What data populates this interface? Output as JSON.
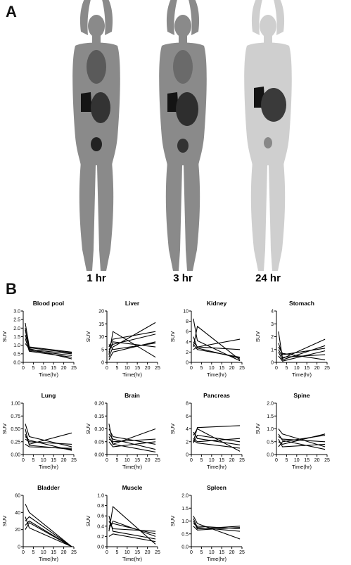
{
  "panel_a": {
    "label": "A",
    "scans": [
      {
        "time_label": "1 hr"
      },
      {
        "time_label": "3 hr"
      },
      {
        "time_label": "24 hr"
      }
    ]
  },
  "panel_b": {
    "label": "B"
  },
  "colors": {
    "line": "#000000",
    "axis": "#000000",
    "pet_body": "#7a7a7a",
    "pet_faded": "#c8c8c8",
    "organ": "#141414"
  },
  "chart_data": [
    {
      "type": "line",
      "title": "Blood pool",
      "xlabel": "Time(hr)",
      "ylabel": "SUV",
      "xlim": [
        0,
        25
      ],
      "ylim": [
        0,
        3
      ],
      "xticks": [
        0,
        5,
        10,
        15,
        20,
        25
      ],
      "yticks": [
        0.0,
        0.5,
        1.0,
        1.5,
        2.0,
        2.5,
        3.0
      ],
      "ytick_labels": [
        "0.0",
        "0.5",
        "1.0",
        "1.5",
        "2.0",
        "2.5",
        "3.0"
      ],
      "series": [
        {
          "x": [
            1,
            3,
            24
          ],
          "y": [
            2.3,
            0.9,
            0.6
          ]
        },
        {
          "x": [
            1,
            3,
            24
          ],
          "y": [
            1.9,
            0.75,
            0.5
          ]
        },
        {
          "x": [
            1,
            3,
            24
          ],
          "y": [
            1.4,
            0.65,
            0.3
          ]
        },
        {
          "x": [
            1,
            3,
            24
          ],
          "y": [
            1.1,
            0.8,
            0.2
          ]
        },
        {
          "x": [
            1,
            3,
            24
          ],
          "y": [
            2.0,
            0.7,
            0.4
          ]
        },
        {
          "x": [
            1,
            3,
            24
          ],
          "y": [
            1.6,
            0.85,
            0.55
          ]
        }
      ]
    },
    {
      "type": "line",
      "title": "Liver",
      "xlabel": "Time(hr)",
      "ylabel": "SUV",
      "xlim": [
        0,
        25
      ],
      "ylim": [
        0,
        20
      ],
      "xticks": [
        0,
        5,
        10,
        15,
        20,
        25
      ],
      "yticks": [
        0,
        5,
        10,
        15,
        20
      ],
      "ytick_labels": [
        "0",
        "5",
        "10",
        "15",
        "20"
      ],
      "series": [
        {
          "x": [
            1,
            3,
            24
          ],
          "y": [
            2,
            6,
            15.5
          ]
        },
        {
          "x": [
            1,
            3,
            24
          ],
          "y": [
            3,
            12,
            2
          ]
        },
        {
          "x": [
            1,
            3,
            24
          ],
          "y": [
            5,
            7,
            11
          ]
        },
        {
          "x": [
            1,
            3,
            24
          ],
          "y": [
            4,
            8,
            6
          ]
        },
        {
          "x": [
            1,
            3,
            24
          ],
          "y": [
            6,
            9,
            12
          ]
        },
        {
          "x": [
            1,
            3,
            24
          ],
          "y": [
            1,
            4,
            8
          ]
        },
        {
          "x": [
            1,
            3,
            24
          ],
          "y": [
            7,
            5,
            7.5
          ]
        }
      ]
    },
    {
      "type": "line",
      "title": "Kidney",
      "xlabel": "Time(hr)",
      "ylabel": "SUV",
      "xlim": [
        0,
        25
      ],
      "ylim": [
        0,
        10
      ],
      "xticks": [
        0,
        5,
        10,
        15,
        20,
        25
      ],
      "yticks": [
        0,
        2,
        4,
        6,
        8,
        10
      ],
      "ytick_labels": [
        "0",
        "2",
        "4",
        "6",
        "8",
        "10"
      ],
      "series": [
        {
          "x": [
            1,
            3,
            24
          ],
          "y": [
            3,
            7,
            0.5
          ]
        },
        {
          "x": [
            1,
            3,
            24
          ],
          "y": [
            2.5,
            3,
            4.5
          ]
        },
        {
          "x": [
            1,
            3,
            24
          ],
          "y": [
            4,
            3,
            2.5
          ]
        },
        {
          "x": [
            1,
            3,
            24
          ],
          "y": [
            8.5,
            4.2,
            0.3
          ]
        },
        {
          "x": [
            1,
            3,
            24
          ],
          "y": [
            3.5,
            2.5,
            1
          ]
        },
        {
          "x": [
            1,
            3,
            24
          ],
          "y": [
            5,
            2.8,
            0.8
          ]
        }
      ]
    },
    {
      "type": "line",
      "title": "Stomach",
      "xlabel": "Time(hr)",
      "ylabel": "SUV",
      "xlim": [
        0,
        25
      ],
      "ylim": [
        0,
        4
      ],
      "xticks": [
        0,
        5,
        10,
        15,
        20,
        25
      ],
      "yticks": [
        0,
        1,
        2,
        3,
        4
      ],
      "ytick_labels": [
        "0",
        "1",
        "2",
        "3",
        "4"
      ],
      "series": [
        {
          "x": [
            1,
            3,
            24
          ],
          "y": [
            2.4,
            0.3,
            1.8
          ]
        },
        {
          "x": [
            1,
            3,
            24
          ],
          "y": [
            1.5,
            0.6,
            1.1
          ]
        },
        {
          "x": [
            1,
            3,
            24
          ],
          "y": [
            1.0,
            0.4,
            0.6
          ]
        },
        {
          "x": [
            1,
            3,
            24
          ],
          "y": [
            0.8,
            0.2,
            1.3
          ]
        },
        {
          "x": [
            1,
            3,
            24
          ],
          "y": [
            1.2,
            0.7,
            0.2
          ]
        },
        {
          "x": [
            1,
            3,
            24
          ],
          "y": [
            0.5,
            0.1,
            0.9
          ]
        }
      ]
    },
    {
      "type": "line",
      "title": "Lung",
      "xlabel": "Time(hr)",
      "ylabel": "SUV",
      "xlim": [
        0,
        25
      ],
      "ylim": [
        0,
        1
      ],
      "xticks": [
        0,
        5,
        10,
        15,
        20,
        25
      ],
      "yticks": [
        0,
        0.25,
        0.5,
        0.75,
        1.0
      ],
      "ytick_labels": [
        "0.00",
        "0.25",
        "0.50",
        "0.75",
        "1.00"
      ],
      "series": [
        {
          "x": [
            1,
            3,
            24
          ],
          "y": [
            0.6,
            0.35,
            0.15
          ]
        },
        {
          "x": [
            1,
            3,
            24
          ],
          "y": [
            0.4,
            0.2,
            0.42
          ]
        },
        {
          "x": [
            1,
            3,
            24
          ],
          "y": [
            0.3,
            0.25,
            0.2
          ]
        },
        {
          "x": [
            1,
            3,
            24
          ],
          "y": [
            0.5,
            0.18,
            0.1
          ]
        },
        {
          "x": [
            1,
            3,
            24
          ],
          "y": [
            0.2,
            0.15,
            0.12
          ]
        },
        {
          "x": [
            1,
            3,
            24
          ],
          "y": [
            0.35,
            0.28,
            0.08
          ]
        }
      ]
    },
    {
      "type": "line",
      "title": "Brain",
      "xlabel": "Time(hr)",
      "ylabel": "SUV",
      "xlim": [
        0,
        25
      ],
      "ylim": [
        0,
        0.2
      ],
      "xticks": [
        0,
        5,
        10,
        15,
        20,
        25
      ],
      "yticks": [
        0,
        0.05,
        0.1,
        0.15,
        0.2
      ],
      "ytick_labels": [
        "0.00",
        "0.05",
        "0.10",
        "0.15",
        "0.20"
      ],
      "series": [
        {
          "x": [
            1,
            3,
            24
          ],
          "y": [
            0.12,
            0.04,
            0.1
          ]
        },
        {
          "x": [
            1,
            3,
            24
          ],
          "y": [
            0.08,
            0.06,
            0.02
          ]
        },
        {
          "x": [
            1,
            3,
            24
          ],
          "y": [
            0.06,
            0.05,
            0.06
          ]
        },
        {
          "x": [
            1,
            3,
            24
          ],
          "y": [
            0.1,
            0.07,
            0.04
          ]
        },
        {
          "x": [
            1,
            3,
            24
          ],
          "y": [
            0.05,
            0.03,
            0.05
          ]
        },
        {
          "x": [
            1,
            3,
            24
          ],
          "y": [
            0.07,
            0.04,
            0.01
          ]
        }
      ]
    },
    {
      "type": "line",
      "title": "Pancreas",
      "xlabel": "Time(hr)",
      "ylabel": "SUV",
      "xlim": [
        0,
        25
      ],
      "ylim": [
        0,
        8
      ],
      "xticks": [
        0,
        5,
        10,
        15,
        20,
        25
      ],
      "yticks": [
        0,
        2,
        4,
        6,
        8
      ],
      "ytick_labels": [
        "0",
        "2",
        "4",
        "6",
        "8"
      ],
      "series": [
        {
          "x": [
            1,
            3,
            24
          ],
          "y": [
            2,
            4.2,
            4.5
          ]
        },
        {
          "x": [
            1,
            3,
            24
          ],
          "y": [
            3,
            4,
            0.5
          ]
        },
        {
          "x": [
            1,
            3,
            24
          ],
          "y": [
            2.5,
            2,
            2.5
          ]
        },
        {
          "x": [
            1,
            3,
            24
          ],
          "y": [
            3.5,
            2.5,
            1.5
          ]
        },
        {
          "x": [
            1,
            3,
            24
          ],
          "y": [
            2.2,
            1.8,
            1
          ]
        },
        {
          "x": [
            1,
            3,
            24
          ],
          "y": [
            1.8,
            3,
            2
          ]
        }
      ]
    },
    {
      "type": "line",
      "title": "Spine",
      "xlabel": "Time(hr)",
      "ylabel": "SUV",
      "xlim": [
        0,
        25
      ],
      "ylim": [
        0,
        2
      ],
      "xticks": [
        0,
        5,
        10,
        15,
        20,
        25
      ],
      "yticks": [
        0,
        0.5,
        1.0,
        1.5,
        2.0
      ],
      "ytick_labels": [
        "0.0",
        "0.5",
        "1.0",
        "1.5",
        "2.0"
      ],
      "series": [
        {
          "x": [
            1,
            3,
            24
          ],
          "y": [
            1.0,
            0.8,
            0.3
          ]
        },
        {
          "x": [
            1,
            3,
            24
          ],
          "y": [
            0.5,
            0.4,
            0.8
          ]
        },
        {
          "x": [
            1,
            3,
            24
          ],
          "y": [
            0.7,
            0.6,
            0.5
          ]
        },
        {
          "x": [
            1,
            3,
            24
          ],
          "y": [
            0.3,
            0.5,
            0.75
          ]
        },
        {
          "x": [
            1,
            3,
            24
          ],
          "y": [
            0.6,
            0.3,
            0.4
          ]
        },
        {
          "x": [
            1,
            3,
            24
          ],
          "y": [
            0.8,
            0.55,
            0.2
          ]
        }
      ]
    },
    {
      "type": "line",
      "title": "Bladder",
      "xlabel": "Time(hr)",
      "ylabel": "SUV",
      "xlim": [
        0,
        25
      ],
      "ylim": [
        0,
        60
      ],
      "xticks": [
        0,
        5,
        10,
        15,
        20,
        25
      ],
      "yticks": [
        0,
        20,
        40,
        60
      ],
      "ytick_labels": [
        "0",
        "20",
        "40",
        "60"
      ],
      "series": [
        {
          "x": [
            1,
            3,
            24
          ],
          "y": [
            50,
            40,
            0
          ]
        },
        {
          "x": [
            1,
            3,
            24
          ],
          "y": [
            30,
            35,
            0
          ]
        },
        {
          "x": [
            1,
            3,
            24
          ],
          "y": [
            20,
            28,
            0
          ]
        },
        {
          "x": [
            1,
            3,
            24
          ],
          "y": [
            35,
            22,
            0
          ]
        },
        {
          "x": [
            1,
            3,
            24
          ],
          "y": [
            25,
            30,
            0
          ]
        }
      ]
    },
    {
      "type": "line",
      "title": "Muscle",
      "xlabel": "Time(hr)",
      "ylabel": "SUV",
      "xlim": [
        0,
        25
      ],
      "ylim": [
        0,
        1
      ],
      "xticks": [
        0,
        5,
        10,
        15,
        20,
        25
      ],
      "yticks": [
        0,
        0.2,
        0.4,
        0.6,
        0.8,
        1.0
      ],
      "ytick_labels": [
        "0.0",
        "0.2",
        "0.4",
        "0.6",
        "0.8",
        "1.0"
      ],
      "series": [
        {
          "x": [
            1,
            3,
            24
          ],
          "y": [
            0.3,
            0.78,
            0.05
          ]
        },
        {
          "x": [
            1,
            3,
            24
          ],
          "y": [
            0.5,
            0.35,
            0.3
          ]
        },
        {
          "x": [
            1,
            3,
            24
          ],
          "y": [
            0.4,
            0.45,
            0.25
          ]
        },
        {
          "x": [
            1,
            3,
            24
          ],
          "y": [
            0.6,
            0.3,
            0.15
          ]
        },
        {
          "x": [
            1,
            3,
            24
          ],
          "y": [
            0.2,
            0.25,
            0.1
          ]
        },
        {
          "x": [
            1,
            3,
            24
          ],
          "y": [
            0.35,
            0.5,
            0.2
          ]
        }
      ]
    },
    {
      "type": "line",
      "title": "Spleen",
      "xlabel": "Time(hr)",
      "ylabel": "SUV",
      "xlim": [
        0,
        25
      ],
      "ylim": [
        0,
        2
      ],
      "xticks": [
        0,
        5,
        10,
        15,
        20,
        25
      ],
      "yticks": [
        0,
        0.5,
        1.0,
        1.5,
        2.0
      ],
      "ytick_labels": [
        "0.0",
        "0.5",
        "1.0",
        "1.5",
        "2.0"
      ],
      "series": [
        {
          "x": [
            1,
            3,
            24
          ],
          "y": [
            1.2,
            0.9,
            0.3
          ]
        },
        {
          "x": [
            1,
            3,
            24
          ],
          "y": [
            1.0,
            0.7,
            0.8
          ]
        },
        {
          "x": [
            1,
            3,
            24
          ],
          "y": [
            0.9,
            0.8,
            0.7
          ]
        },
        {
          "x": [
            1,
            3,
            24
          ],
          "y": [
            1.1,
            0.75,
            0.6
          ]
        },
        {
          "x": [
            1,
            3,
            24
          ],
          "y": [
            0.8,
            0.65,
            0.75
          ]
        }
      ]
    }
  ]
}
